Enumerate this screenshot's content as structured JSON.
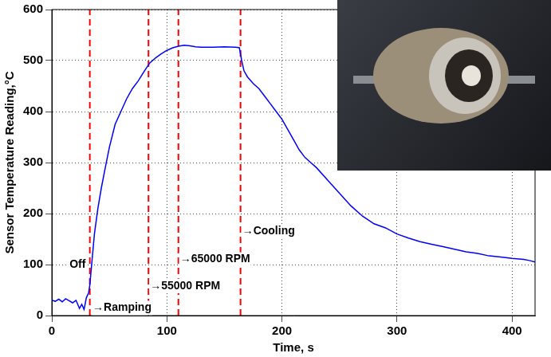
{
  "chart_data": {
    "type": "line",
    "x_label": "Time, s",
    "y_label": "Sensor Temperature Reading,°C",
    "x": [
      0,
      3,
      6,
      9,
      12,
      15,
      18,
      21,
      24,
      26,
      28,
      30,
      32,
      33,
      35,
      37,
      40,
      43,
      46,
      50,
      55,
      60,
      65,
      70,
      75,
      80,
      85,
      90,
      95,
      100,
      105,
      110,
      115,
      120,
      125,
      130,
      140,
      150,
      160,
      163,
      165,
      167,
      170,
      175,
      180,
      185,
      190,
      195,
      200,
      205,
      210,
      215,
      220,
      225,
      230,
      240,
      250,
      260,
      270,
      280,
      290,
      300,
      310,
      320,
      330,
      340,
      350,
      360,
      370,
      380,
      390,
      400,
      410,
      415,
      420
    ],
    "values": [
      30,
      28,
      32,
      27,
      33,
      29,
      25,
      30,
      14,
      22,
      12,
      35,
      45,
      60,
      110,
      160,
      210,
      250,
      285,
      330,
      375,
      400,
      425,
      445,
      460,
      478,
      495,
      505,
      513,
      520,
      525,
      528,
      530,
      529,
      527,
      526,
      526,
      527,
      526,
      525,
      500,
      480,
      468,
      455,
      445,
      430,
      415,
      400,
      385,
      365,
      345,
      325,
      310,
      300,
      290,
      265,
      240,
      215,
      195,
      180,
      172,
      160,
      152,
      145,
      140,
      135,
      130,
      125,
      122,
      117,
      115,
      112,
      110,
      108,
      105
    ],
    "color": "#0000ff",
    "xlim": [
      0,
      420
    ],
    "ylim": [
      0,
      600
    ],
    "xticks": [
      0,
      100,
      200,
      300,
      400
    ],
    "yticks": [
      0,
      100,
      200,
      300,
      400,
      500,
      600
    ],
    "grid": true,
    "vlines": {
      "x": [
        33,
        84,
        110,
        164
      ],
      "color": "#ff0000",
      "line_style": "dashed"
    },
    "annotations": [
      {
        "text": "Off",
        "x": 14,
        "y": 100
      },
      {
        "text": "→Ramping",
        "x": 34,
        "y": 15
      },
      {
        "text": "→55000 RPM",
        "x": 84,
        "y": 58
      },
      {
        "text": "→65000 RPM",
        "x": 110,
        "y": 110
      },
      {
        "text": "→Cooling",
        "x": 164,
        "y": 165
      }
    ]
  }
}
